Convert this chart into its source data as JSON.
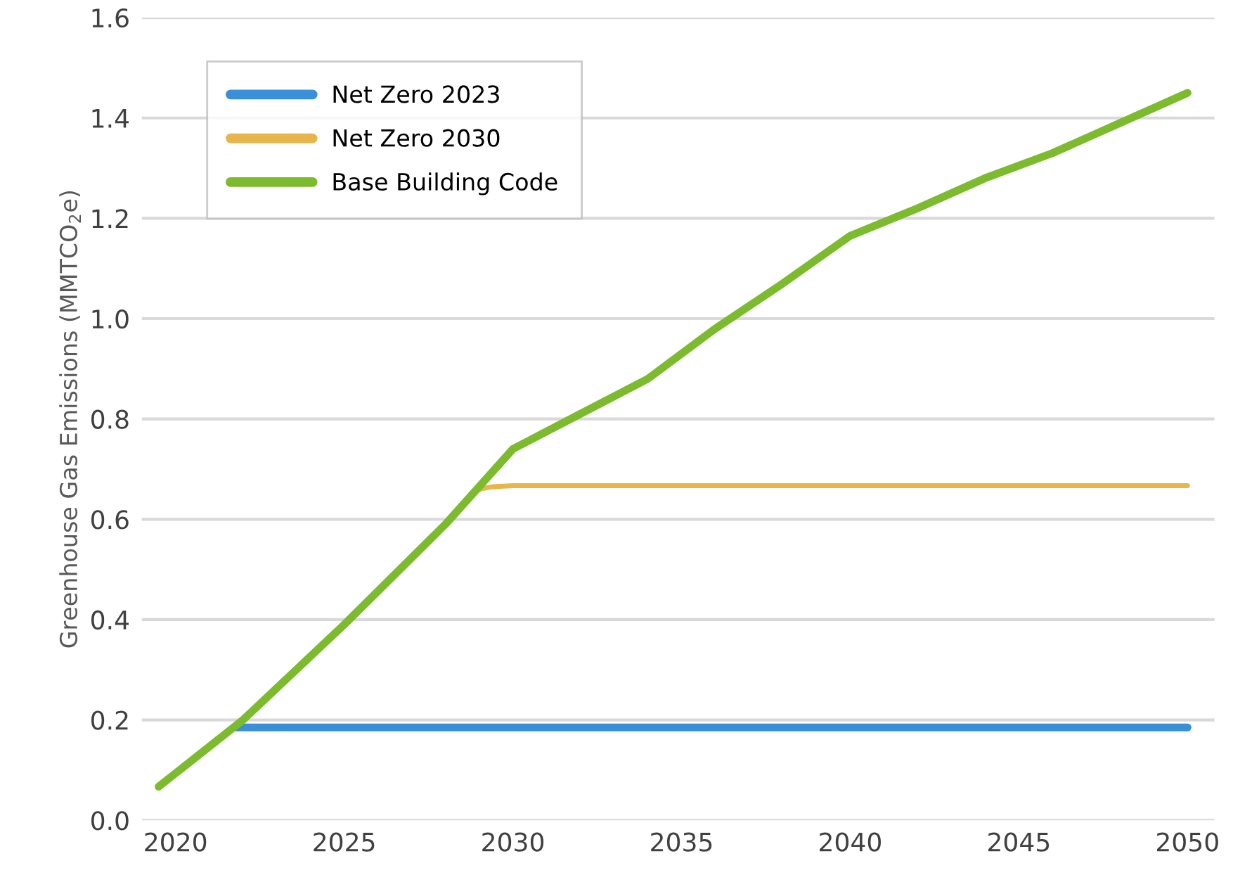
{
  "chart_data": {
    "type": "line",
    "ylabel": "Greenhouse Gas Emissions (MMTCO$_{2}$e)",
    "xlim": [
      2019,
      2050.8
    ],
    "xticks": [
      2020,
      2025,
      2030,
      2035,
      2040,
      2045,
      2050
    ],
    "ylim": [
      0,
      1.6
    ],
    "yticks": [
      {
        "value": 0,
        "label": "0.0"
      },
      0.2,
      0.4,
      0.6,
      0.8,
      {
        "value": 1,
        "label": "1.0"
      },
      1.2,
      1.4,
      1.6
    ],
    "grid": "y",
    "legend": "top left",
    "line_style": "solid",
    "series": [
      {
        "name": "Net Zero 2023",
        "color": "#3a8fd9",
        "x": [
          2021.8,
          2050
        ],
        "values": [
          0.185,
          0.185
        ]
      },
      {
        "name": "Net Zero 2030",
        "color": "#e8b54a",
        "x": [
          2029,
          2029.4,
          2030,
          2050
        ],
        "values": [
          0.66,
          0.665,
          0.667,
          0.667
        ]
      },
      {
        "name": "Base Building Code",
        "color": "#7dbb2e",
        "x": [
          2019.5,
          2022,
          2025,
          2028,
          2029,
          2030,
          2032,
          2034,
          2036,
          2038,
          2040,
          2042,
          2044,
          2046,
          2048,
          2050
        ],
        "values": [
          0.067,
          0.2,
          0.39,
          0.59,
          0.665,
          0.74,
          0.81,
          0.88,
          0.98,
          1.07,
          1.165,
          1.22,
          1.28,
          1.33,
          1.39,
          1.45
        ]
      }
    ]
  }
}
